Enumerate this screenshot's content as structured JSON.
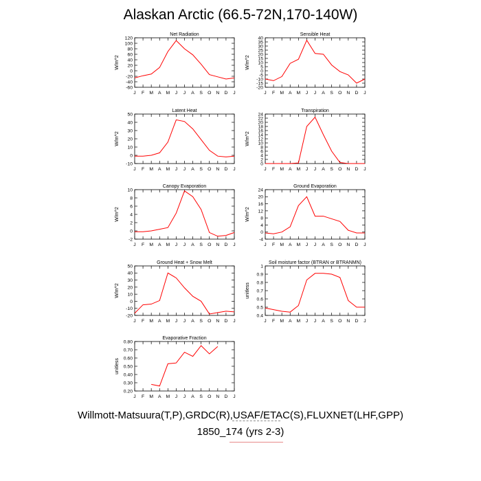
{
  "page": {
    "title": "Alaskan Arctic (66.5-72N,170-140W)",
    "footer_line1": "Willmott-Matsuura(T,P),GRDC(R),USAF/ETAC(S),FLUXNET(LHF,GPP)",
    "footer_line2": "1850_174 (yrs 2-3)"
  },
  "colors": {
    "series": "#ff0000",
    "axis": "#000000"
  },
  "chart_data": [
    {
      "type": "line",
      "title": "Net Radiation",
      "ylabel": "W/m^2",
      "categories": [
        "J",
        "F",
        "M",
        "A",
        "M",
        "J",
        "J",
        "A",
        "S",
        "O",
        "N",
        "D",
        "J"
      ],
      "ylim": [
        -60,
        120
      ],
      "yticks": [
        -60,
        -40,
        -20,
        0,
        20,
        40,
        60,
        80,
        100,
        120
      ],
      "series": [
        {
          "values": [
            -26,
            -18,
            -12,
            12,
            70,
            110,
            80,
            58,
            24,
            -14,
            -22,
            -30,
            -26
          ]
        }
      ]
    },
    {
      "type": "line",
      "title": "Sensible Heat",
      "ylabel": "W/m^2",
      "categories": [
        "J",
        "F",
        "M",
        "A",
        "M",
        "J",
        "J",
        "A",
        "S",
        "O",
        "N",
        "D",
        "J"
      ],
      "ylim": [
        -20,
        40
      ],
      "yticks": [
        -20,
        -15,
        -10,
        -5,
        0,
        5,
        10,
        15,
        20,
        25,
        30,
        35,
        40
      ],
      "series": [
        {
          "values": [
            -10,
            -12,
            -7,
            9,
            14,
            37,
            21,
            20,
            7,
            -1,
            -5,
            -15,
            -10
          ]
        }
      ]
    },
    {
      "type": "line",
      "title": "Latent Heat",
      "ylabel": "W/m^2",
      "categories": [
        "J",
        "F",
        "M",
        "A",
        "M",
        "J",
        "J",
        "A",
        "S",
        "O",
        "N",
        "D",
        "J"
      ],
      "ylim": [
        -10,
        50
      ],
      "yticks": [
        -10,
        0,
        10,
        20,
        30,
        40,
        50
      ],
      "series": [
        {
          "values": [
            -1,
            -1,
            0,
            3,
            16,
            43,
            41,
            32,
            19,
            6,
            -1,
            -2,
            -1
          ]
        }
      ]
    },
    {
      "type": "line",
      "title": "Transpiration",
      "ylabel": "W/m^2",
      "categories": [
        "J",
        "F",
        "M",
        "A",
        "M",
        "J",
        "J",
        "A",
        "S",
        "O",
        "N",
        "D",
        "J"
      ],
      "ylim": [
        0,
        24
      ],
      "yticks": [
        0,
        2,
        4,
        6,
        8,
        10,
        12,
        14,
        16,
        18,
        20,
        22,
        24
      ],
      "series": [
        {
          "values": [
            0,
            0,
            0,
            0,
            0.3,
            18,
            22.5,
            14,
            6,
            0.5,
            0,
            0,
            0
          ]
        }
      ]
    },
    {
      "type": "line",
      "title": "Canopy Evaporation",
      "ylabel": "W/m^2",
      "categories": [
        "J",
        "F",
        "M",
        "A",
        "M",
        "J",
        "J",
        "A",
        "S",
        "O",
        "N",
        "D",
        "J"
      ],
      "ylim": [
        -2,
        10
      ],
      "yticks": [
        -2,
        0,
        2,
        4,
        6,
        8,
        10
      ],
      "series": [
        {
          "values": [
            -0.2,
            -0.2,
            0,
            0.4,
            0.8,
            4.3,
            9.7,
            8.3,
            5.2,
            -0.4,
            -1.3,
            -1.1,
            -0.4
          ]
        }
      ]
    },
    {
      "type": "line",
      "title": "Ground Evaporation",
      "ylabel": "W/m^2",
      "categories": [
        "J",
        "F",
        "M",
        "A",
        "M",
        "J",
        "J",
        "A",
        "S",
        "O",
        "N",
        "D",
        "J"
      ],
      "ylim": [
        -4,
        24
      ],
      "yticks": [
        -4,
        0,
        4,
        8,
        12,
        16,
        20,
        24
      ],
      "series": [
        {
          "values": [
            -0.5,
            -1,
            0,
            3,
            15,
            20,
            9,
            9,
            7.5,
            6,
            1,
            -0.5,
            -0.5
          ]
        }
      ]
    },
    {
      "type": "line",
      "title": "Ground Heat + Snow Melt",
      "ylabel": "W/m^2",
      "categories": [
        "J",
        "F",
        "M",
        "A",
        "M",
        "J",
        "J",
        "A",
        "S",
        "O",
        "N",
        "D",
        "J"
      ],
      "ylim": [
        -20,
        50
      ],
      "yticks": [
        -20,
        -10,
        0,
        10,
        20,
        30,
        40,
        50
      ],
      "series": [
        {
          "values": [
            -17,
            -5,
            -4,
            1,
            40,
            33,
            19,
            7,
            0,
            -18,
            -16,
            -14,
            -15
          ]
        }
      ]
    },
    {
      "type": "line",
      "title": "Soil moisture factor (BTRAN or BTRANMN)",
      "ylabel": "unitless",
      "categories": [
        "J",
        "F",
        "M",
        "A",
        "M",
        "J",
        "J",
        "A",
        "S",
        "O",
        "N",
        "D",
        "J"
      ],
      "ylim": [
        0.4,
        1.0
      ],
      "yticks": [
        0.4,
        0.5,
        0.6,
        0.7,
        0.8,
        0.9,
        1.0
      ],
      "ytick_labels": [
        "0.4",
        "0.5",
        "0.6",
        "0.7",
        "0.8",
        "0.9",
        "1"
      ],
      "series": [
        {
          "values": [
            0.49,
            0.47,
            0.45,
            0.44,
            0.52,
            0.83,
            0.91,
            0.91,
            0.9,
            0.86,
            0.58,
            0.5,
            0.5
          ]
        }
      ]
    },
    {
      "type": "line",
      "title": "Evaporative Fraction",
      "ylabel": "unitless",
      "categories": [
        "J",
        "F",
        "M",
        "A",
        "M",
        "J",
        "J",
        "A",
        "S",
        "O",
        "N",
        "D",
        "J"
      ],
      "ylim": [
        0.2,
        0.8
      ],
      "yticks": [
        0.2,
        0.3,
        0.4,
        0.5,
        0.6,
        0.7,
        0.8
      ],
      "ytick_labels": [
        "0.20",
        "0.30",
        "0.40",
        "0.50",
        "0.60",
        "0.70",
        "0.80"
      ],
      "series": [
        {
          "values": [
            null,
            null,
            0.28,
            0.26,
            0.53,
            0.54,
            0.67,
            0.62,
            0.75,
            0.65,
            0.74,
            null,
            null
          ]
        }
      ]
    }
  ]
}
